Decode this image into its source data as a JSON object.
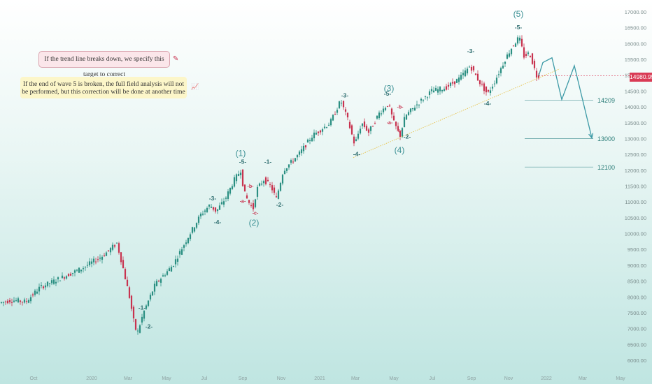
{
  "colors": {
    "up": "#2b8f82",
    "down": "#c8334f",
    "wave": "#3a8f93",
    "label": "#2e6d6f",
    "sub": "#c8334f",
    "target_line": "#6aa7a8",
    "trend_line": "#e8c24a",
    "projection": "#3d9aa6"
  },
  "notes": {
    "trend": "If the trend line breaks down, we specify this target to correct",
    "wave5": "If the end of wave 5 is broken, the full field analysis will not be performed, but this correction will be done at another time"
  },
  "current_price": "14980.95",
  "chart_data": {
    "type": "candlestick",
    "ylim": [
      6000,
      17000
    ],
    "yticks": [
      "6000.00",
      "6500.00",
      "7000.00",
      "7500.00",
      "8000.00",
      "8500.00",
      "9000.00",
      "9500.00",
      "10000.00",
      "10500.00",
      "11000.00",
      "11500.00",
      "12000.00",
      "12500.00",
      "13000.00",
      "13500.00",
      "14000.00",
      "14500.00",
      "15000.00",
      "15500.00",
      "16000.00",
      "16500.00",
      "17000.00"
    ],
    "xticks": [
      "Oct",
      "2020",
      "Mar",
      "May",
      "Jul",
      "Sep",
      "Nov",
      "2021",
      "Mar",
      "May",
      "Jul",
      "Sep",
      "Nov",
      "2022",
      "Mar",
      "May"
    ],
    "targets": [
      {
        "value": 14209,
        "label": "14209"
      },
      {
        "value": 13000,
        "label": "13000"
      },
      {
        "value": 12100,
        "label": "12100"
      }
    ],
    "path_anchors": [
      {
        "t": 0,
        "v": 7800
      },
      {
        "t": 20,
        "v": 7900
      },
      {
        "t": 40,
        "v": 7850
      },
      {
        "t": 60,
        "v": 8300
      },
      {
        "t": 90,
        "v": 8600
      },
      {
        "t": 120,
        "v": 8900
      },
      {
        "t": 150,
        "v": 9300
      },
      {
        "t": 170,
        "v": 9700
      },
      {
        "t": 178,
        "v": 9000
      },
      {
        "t": 188,
        "v": 8000
      },
      {
        "t": 196,
        "v": 7000
      },
      {
        "t": 200,
        "v": 6900
      },
      {
        "t": 208,
        "v": 7500
      },
      {
        "t": 225,
        "v": 8400
      },
      {
        "t": 250,
        "v": 9000
      },
      {
        "t": 272,
        "v": 9900
      },
      {
        "t": 290,
        "v": 10600
      },
      {
        "t": 303,
        "v": 10900
      },
      {
        "t": 312,
        "v": 10700
      },
      {
        "t": 325,
        "v": 11100
      },
      {
        "t": 338,
        "v": 11700
      },
      {
        "t": 347,
        "v": 12000
      },
      {
        "t": 352,
        "v": 11300
      },
      {
        "t": 358,
        "v": 11000
      },
      {
        "t": 365,
        "v": 10800
      },
      {
        "t": 370,
        "v": 11400
      },
      {
        "t": 380,
        "v": 11700
      },
      {
        "t": 390,
        "v": 11500
      },
      {
        "t": 398,
        "v": 11100
      },
      {
        "t": 408,
        "v": 12000
      },
      {
        "t": 430,
        "v": 12500
      },
      {
        "t": 450,
        "v": 13100
      },
      {
        "t": 475,
        "v": 13500
      },
      {
        "t": 490,
        "v": 14200
      },
      {
        "t": 500,
        "v": 13600
      },
      {
        "t": 510,
        "v": 12800
      },
      {
        "t": 520,
        "v": 13500
      },
      {
        "t": 530,
        "v": 13200
      },
      {
        "t": 545,
        "v": 13800
      },
      {
        "t": 558,
        "v": 14100
      },
      {
        "t": 566,
        "v": 13500
      },
      {
        "t": 575,
        "v": 13100
      },
      {
        "t": 582,
        "v": 13700
      },
      {
        "t": 600,
        "v": 14100
      },
      {
        "t": 620,
        "v": 14500
      },
      {
        "t": 640,
        "v": 14600
      },
      {
        "t": 660,
        "v": 14900
      },
      {
        "t": 675,
        "v": 15300
      },
      {
        "t": 688,
        "v": 14800
      },
      {
        "t": 700,
        "v": 14400
      },
      {
        "t": 710,
        "v": 14800
      },
      {
        "t": 725,
        "v": 15500
      },
      {
        "t": 735,
        "v": 15900
      },
      {
        "t": 745,
        "v": 16200
      },
      {
        "t": 752,
        "v": 15600
      },
      {
        "t": 760,
        "v": 15700
      },
      {
        "t": 770,
        "v": 14980
      }
    ],
    "projection_path": [
      {
        "t": 770,
        "v": 14980
      },
      {
        "t": 776,
        "v": 15400
      },
      {
        "t": 789,
        "v": 15550
      },
      {
        "t": 803,
        "v": 14230
      },
      {
        "t": 821,
        "v": 15300
      },
      {
        "t": 846,
        "v": 13020
      }
    ],
    "trend_line": [
      {
        "t": 505,
        "v": 12400
      },
      {
        "t": 800,
        "v": 15200
      }
    ],
    "wave_labels": [
      {
        "t": 344,
        "v": 12450,
        "text": "(1)",
        "kind": "major"
      },
      {
        "t": 363,
        "v": 10250,
        "text": "(2)",
        "kind": "major"
      },
      {
        "t": 556,
        "v": 14500,
        "text": "(3)",
        "kind": "major"
      },
      {
        "t": 571,
        "v": 12550,
        "text": "(4)",
        "kind": "major"
      },
      {
        "t": 741,
        "v": 16850,
        "text": "(5)",
        "kind": "major"
      },
      {
        "t": 203,
        "v": 7600,
        "text": "-1-",
        "kind": "minor"
      },
      {
        "t": 213,
        "v": 7000,
        "text": "-2-",
        "kind": "minor"
      },
      {
        "t": 304,
        "v": 11050,
        "text": "-3-",
        "kind": "minor"
      },
      {
        "t": 311,
        "v": 10300,
        "text": "-4-",
        "kind": "minor"
      },
      {
        "t": 347,
        "v": 12200,
        "text": "-5-",
        "kind": "minor"
      },
      {
        "t": 383,
        "v": 12200,
        "text": "-1-",
        "kind": "minor"
      },
      {
        "t": 400,
        "v": 10850,
        "text": "-2-",
        "kind": "minor"
      },
      {
        "t": 493,
        "v": 14300,
        "text": "-3-",
        "kind": "minor"
      },
      {
        "t": 510,
        "v": 12450,
        "text": "-4-",
        "kind": "minor"
      },
      {
        "t": 554,
        "v": 14350,
        "text": "-5-",
        "kind": "minor"
      },
      {
        "t": 582,
        "v": 13000,
        "text": "-2-",
        "kind": "minor"
      },
      {
        "t": 673,
        "v": 15700,
        "text": "-3-",
        "kind": "minor"
      },
      {
        "t": 697,
        "v": 14050,
        "text": "-4-",
        "kind": "minor"
      },
      {
        "t": 741,
        "v": 16450,
        "text": "-5-",
        "kind": "minor"
      },
      {
        "t": 358,
        "v": 11450,
        "text": "-b-",
        "kind": "sub"
      },
      {
        "t": 347,
        "v": 10970,
        "text": "-a-",
        "kind": "sub"
      },
      {
        "t": 365,
        "v": 10600,
        "text": "-c-",
        "kind": "sub"
      },
      {
        "t": 572,
        "v": 13950,
        "text": "-b-",
        "kind": "sub"
      },
      {
        "t": 557,
        "v": 13450,
        "text": "-a-",
        "kind": "sub"
      },
      {
        "t": 571,
        "v": 13200,
        "text": "-c-",
        "kind": "sub"
      }
    ]
  }
}
